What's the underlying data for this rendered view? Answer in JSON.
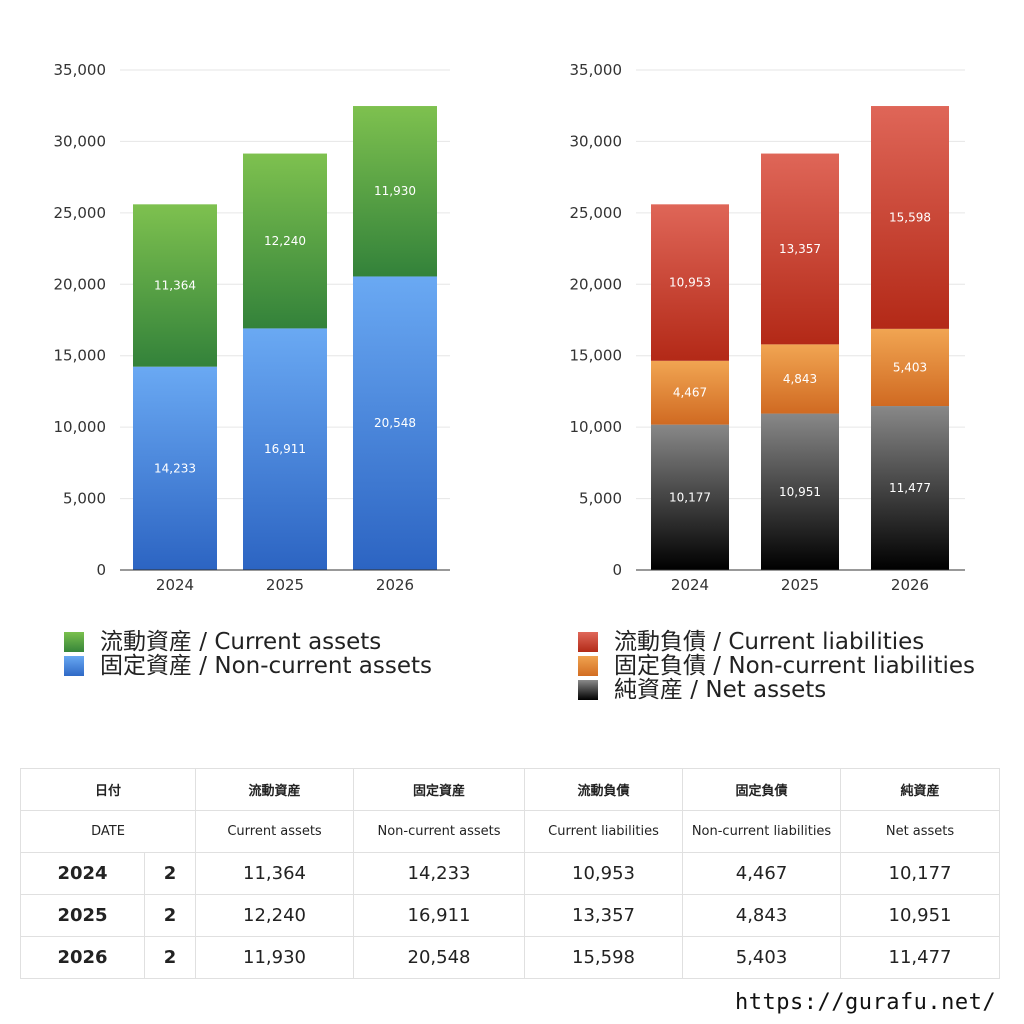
{
  "chart_data": [
    {
      "type": "bar",
      "stacked": true,
      "categories": [
        "2024",
        "2025",
        "2026"
      ],
      "ylim": [
        0,
        35000
      ],
      "yticks": [
        "0",
        "5,000",
        "10,000",
        "15,000",
        "20,000",
        "25,000",
        "30,000",
        "35,000"
      ],
      "grid": true,
      "series": [
        {
          "name": "固定資産 / Non-current assets",
          "values": [
            14233,
            16911,
            20548
          ],
          "labels": [
            "14,233",
            "16,911",
            "20,548"
          ],
          "color": "#4a8ae0"
        },
        {
          "name": "流動資産 / Current assets",
          "values": [
            11364,
            12240,
            11930
          ],
          "labels": [
            "11,364",
            "12,240",
            "11,930"
          ],
          "color": "#55a145"
        }
      ]
    },
    {
      "type": "bar",
      "stacked": true,
      "categories": [
        "2024",
        "2025",
        "2026"
      ],
      "ylim": [
        0,
        35000
      ],
      "yticks": [
        "0",
        "5,000",
        "10,000",
        "15,000",
        "20,000",
        "25,000",
        "30,000",
        "35,000"
      ],
      "grid": true,
      "series": [
        {
          "name": "純資産 / Net assets",
          "values": [
            10177,
            10951,
            11477
          ],
          "labels": [
            "10,177",
            "10,951",
            "11,477"
          ],
          "color": "#444444"
        },
        {
          "name": "固定負債 / Non-current liabilities",
          "values": [
            4467,
            4843,
            5403
          ],
          "labels": [
            "4,467",
            "4,843",
            "5,403"
          ],
          "color": "#e0883a"
        },
        {
          "name": "流動負債 / Current liabilities",
          "values": [
            10953,
            13357,
            15598
          ],
          "labels": [
            "10,953",
            "13,357",
            "15,598"
          ],
          "color": "#cc4433"
        }
      ]
    }
  ],
  "legend_left": [
    "流動資産 / Current assets",
    "固定資産 / Non-current assets"
  ],
  "legend_right": [
    "流動負債 / Current liabilities",
    "固定負債 / Non-current liabilities",
    "純資産 / Net assets"
  ],
  "table": {
    "header_jp": [
      "日付",
      "流動資産",
      "固定資産",
      "流動負債",
      "固定負債",
      "純資産"
    ],
    "header_en": [
      "DATE",
      "Current assets",
      "Non-current assets",
      "Current liabilities",
      "Non-current liabilities",
      "Net assets"
    ],
    "rows": [
      {
        "year": "2024",
        "n": "2",
        "values": [
          "11,364",
          "14,233",
          "10,953",
          "4,467",
          "10,177"
        ]
      },
      {
        "year": "2025",
        "n": "2",
        "values": [
          "12,240",
          "16,911",
          "13,357",
          "4,843",
          "10,951"
        ]
      },
      {
        "year": "2026",
        "n": "2",
        "values": [
          "11,930",
          "20,548",
          "15,598",
          "5,403",
          "11,477"
        ]
      }
    ]
  },
  "site_url": "https://gurafu.net/"
}
